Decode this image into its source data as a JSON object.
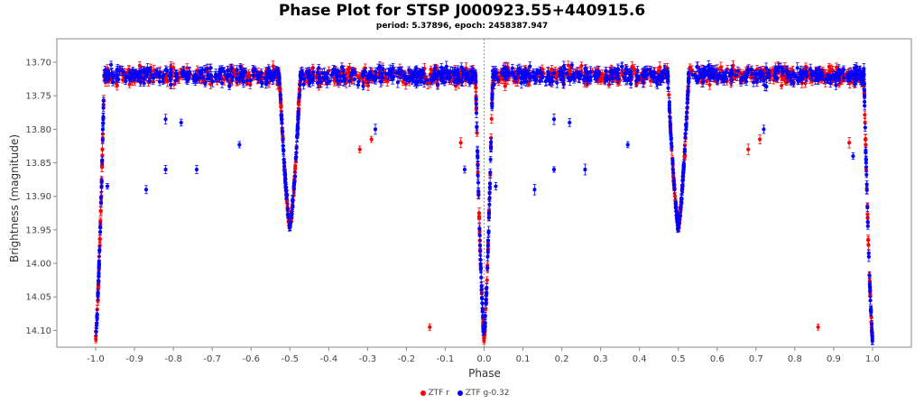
{
  "chart_data": {
    "type": "scatter",
    "title": "Phase Plot for STSP J000923.55+440915.6",
    "subtitle": "period: 5.37896, epoch: 2458387.947",
    "xlabel": "Phase",
    "ylabel": "Brightness (magnitude)",
    "xlim": [
      -1.1,
      1.1
    ],
    "ylim": [
      14.125,
      13.665
    ],
    "y_inverted": true,
    "x_ticks": [
      "-1.0",
      "-0.9",
      "-0.8",
      "-0.7",
      "-0.6",
      "-0.5",
      "-0.4",
      "-0.3",
      "-0.2",
      "-0.1",
      "0.0",
      "0.1",
      "0.2",
      "0.3",
      "0.4",
      "0.5",
      "0.6",
      "0.7",
      "0.8",
      "0.9",
      "1.0"
    ],
    "y_ticks": [
      "13.70",
      "13.75",
      "13.80",
      "13.85",
      "13.90",
      "13.95",
      "14.00",
      "14.05",
      "14.10"
    ],
    "grid": false,
    "reference_line_x": 0.0,
    "legend_position": "bottom-center",
    "model": {
      "baseline": 13.72,
      "primary_eclipse": {
        "phase": 0.0,
        "depth_mag": 0.39,
        "half_width": 0.022
      },
      "secondary_eclipse": {
        "phase": 0.5,
        "depth_mag": 0.225,
        "half_width": 0.027
      }
    },
    "series": [
      {
        "name": "ZTF r",
        "color": "#ff0000",
        "outliers": [
          [
            -0.32,
            13.83
          ],
          [
            -0.29,
            13.815
          ],
          [
            -0.14,
            14.095
          ],
          [
            0.68,
            13.83
          ],
          [
            0.71,
            13.815
          ],
          [
            0.86,
            14.095
          ],
          [
            -0.06,
            13.82
          ],
          [
            0.94,
            13.82
          ]
        ]
      },
      {
        "name": "ZTF g-0.32",
        "color": "#0000ff",
        "outliers": [
          [
            -0.97,
            13.885
          ],
          [
            -0.87,
            13.89
          ],
          [
            -0.82,
            13.86
          ],
          [
            -0.74,
            13.86
          ],
          [
            -0.63,
            13.823
          ],
          [
            -0.28,
            13.8
          ],
          [
            -0.05,
            13.86
          ],
          [
            0.03,
            13.885
          ],
          [
            0.13,
            13.89
          ],
          [
            0.18,
            13.86
          ],
          [
            0.26,
            13.86
          ],
          [
            0.37,
            13.823
          ],
          [
            0.72,
            13.8
          ],
          [
            0.95,
            13.84
          ],
          [
            -0.82,
            13.785
          ],
          [
            -0.78,
            13.79
          ],
          [
            0.18,
            13.785
          ],
          [
            0.22,
            13.79
          ]
        ]
      }
    ]
  }
}
